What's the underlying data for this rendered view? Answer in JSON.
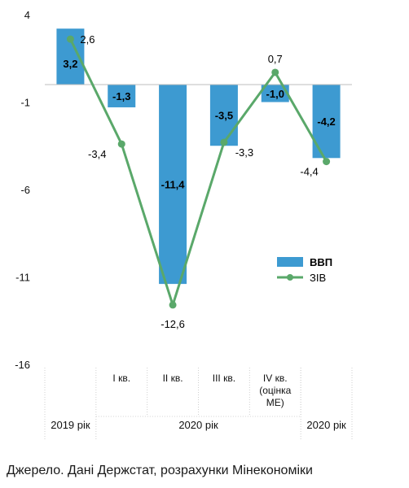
{
  "chart_data": {
    "type": "bar",
    "y_ticks": [
      "4",
      "-1",
      "-6",
      "-11",
      "-16"
    ],
    "y_tick_values": [
      4,
      -1,
      -6,
      -11,
      -16
    ],
    "ylim": [
      -16,
      4
    ],
    "categories": [
      "",
      "I кв.",
      "II кв.",
      "III кв.",
      "IV кв. (оцінка МЕ)",
      ""
    ],
    "category_lines": [
      [
        ""
      ],
      [
        "I кв."
      ],
      [
        "II кв."
      ],
      [
        "III кв."
      ],
      [
        "IV кв.",
        "(оцінка",
        "МЕ)"
      ],
      [
        ""
      ]
    ],
    "groups": [
      {
        "label": "2019 рік",
        "span": [
          0,
          0
        ]
      },
      {
        "label": "2020 рік",
        "span": [
          1,
          4
        ]
      },
      {
        "label": "2020 рік",
        "span": [
          5,
          5
        ]
      }
    ],
    "series": [
      {
        "name": "ВВП",
        "kind": "bar",
        "color": "#3d9ad1",
        "values": [
          3.2,
          -1.3,
          -11.4,
          -3.5,
          -1.0,
          -4.2
        ],
        "labels": [
          "3,2",
          "-1,3",
          "-11,4",
          "-3,5",
          "-1,0",
          "-4,2"
        ]
      },
      {
        "name": "ЗІВ",
        "kind": "line",
        "color": "#5aa86a",
        "values": [
          2.6,
          -3.4,
          -12.6,
          -3.3,
          0.7,
          -4.4
        ],
        "labels": [
          "2,6",
          "-3,4",
          "-12,6",
          "-3,3",
          "0,7",
          "-4,4"
        ]
      }
    ],
    "legend_position": "right",
    "grid": false
  },
  "source_text": "Джерело. Дані Держстат, розрахунки Мінекономіки"
}
